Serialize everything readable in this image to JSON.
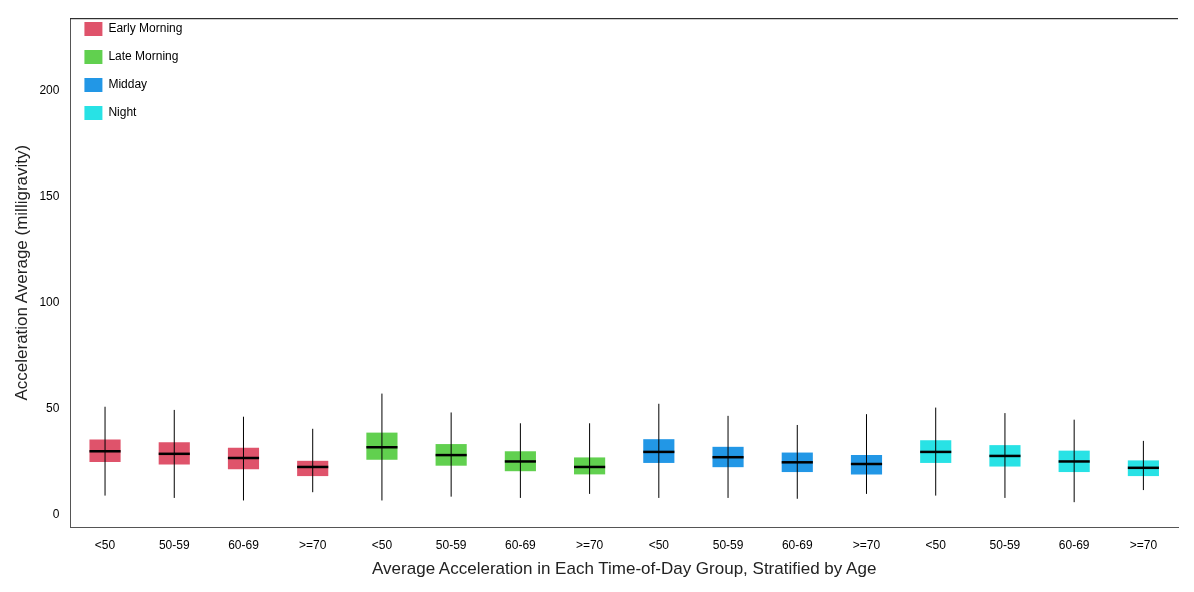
{
  "chart_data": {
    "type": "box",
    "xlabel": "Average Acceleration in Each Time-of-Day Group, Stratified by Age",
    "ylabel": "Acceleration Average (milligravity)",
    "categories": [
      "<50",
      "50-59",
      "60-69",
      ">=70",
      "<50",
      "50-59",
      "60-69",
      ">=70",
      "<50",
      "50-59",
      "60-69",
      ">=70",
      "<50",
      "50-59",
      "60-69",
      ">=70"
    ],
    "ylim": [
      -6,
      234
    ],
    "yticks": [
      0,
      50,
      100,
      150,
      200
    ],
    "grid": false,
    "legend": "top left",
    "series": [
      {
        "name": "Early Morning",
        "color": "#df536b",
        "boxes": [
          {
            "low": 8.9,
            "q1": 24.7,
            "median": 29.8,
            "q3": 35.3,
            "high": 50.8
          },
          {
            "low": 7.8,
            "q1": 23.6,
            "median": 28.6,
            "q3": 34.1,
            "high": 49.3
          },
          {
            "low": 6.6,
            "q1": 21.3,
            "median": 26.6,
            "q3": 31.5,
            "high": 46.1
          },
          {
            "low": 10.5,
            "q1": 18.1,
            "median": 22.4,
            "q3": 25.3,
            "high": 40.4
          },
          null,
          null,
          null,
          null,
          null,
          null,
          null,
          null,
          null,
          null,
          null,
          null
        ]
      },
      {
        "name": "Late Morning",
        "color": "#61d04f",
        "boxes": [
          null,
          null,
          null,
          null,
          {
            "low": 6.6,
            "q1": 25.8,
            "median": 31.7,
            "q3": 38.6,
            "high": 57
          },
          {
            "low": 8.4,
            "q1": 23,
            "median": 28,
            "q3": 33.2,
            "high": 48.1
          },
          {
            "low": 7.8,
            "q1": 20.4,
            "median": 25,
            "q3": 29.8,
            "high": 43
          },
          {
            "low": 9.7,
            "q1": 18.9,
            "median": 22.4,
            "q3": 26.9,
            "high": 43
          },
          null,
          null,
          null,
          null,
          null,
          null,
          null,
          null
        ]
      },
      {
        "name": "Midday",
        "color": "#2297e6",
        "boxes": [
          null,
          null,
          null,
          null,
          null,
          null,
          null,
          null,
          {
            "low": 7.8,
            "q1": 24.3,
            "median": 29.5,
            "q3": 35.5,
            "high": 52.2
          },
          {
            "low": 7.8,
            "q1": 22.3,
            "median": 27,
            "q3": 31.9,
            "high": 46.5
          },
          {
            "low": 7.4,
            "q1": 20,
            "median": 24.6,
            "q3": 29.2,
            "high": 42.2
          },
          {
            "low": 9.7,
            "q1": 18.9,
            "median": 23.8,
            "q3": 28,
            "high": 47.3
          },
          null,
          null,
          null,
          null
        ]
      },
      {
        "name": "Night",
        "color": "#28e2e5",
        "boxes": [
          null,
          null,
          null,
          null,
          null,
          null,
          null,
          null,
          null,
          null,
          null,
          null,
          {
            "low": 8.9,
            "q1": 24.3,
            "median": 29.5,
            "q3": 35,
            "high": 50.4
          },
          {
            "low": 7.8,
            "q1": 22.6,
            "median": 27.6,
            "q3": 32.7,
            "high": 47.8
          },
          {
            "low": 5.8,
            "q1": 20,
            "median": 25,
            "q3": 30.1,
            "high": 44.7
          },
          {
            "low": 11.5,
            "q1": 18.1,
            "median": 22,
            "q3": 25.5,
            "high": 34.7
          }
        ]
      }
    ]
  }
}
